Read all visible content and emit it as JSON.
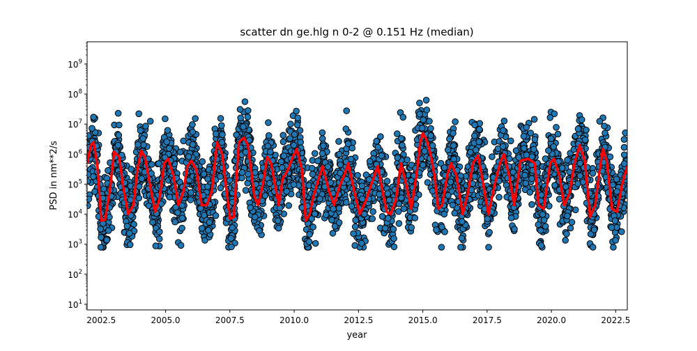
{
  "chart_data": {
    "type": "scatter",
    "title": "scatter dn ge.hlg n 0-2 @ 0.151 Hz (median)",
    "xlabel": "year",
    "ylabel": "PSD in nm**2/s",
    "xlim": [
      2001.95,
      2022.95
    ],
    "ylim": [
      6.5,
      5500000000
    ],
    "yscale": "log",
    "grid": false,
    "x_ticks": [
      {
        "value": 2002.5,
        "label": "2002.5"
      },
      {
        "value": 2005.0,
        "label": "2005.0"
      },
      {
        "value": 2007.5,
        "label": "2007.5"
      },
      {
        "value": 2010.0,
        "label": "2010.0"
      },
      {
        "value": 2012.5,
        "label": "2012.5"
      },
      {
        "value": 2015.0,
        "label": "2015.0"
      },
      {
        "value": 2017.5,
        "label": "2017.5"
      },
      {
        "value": 2020.0,
        "label": "2020.0"
      },
      {
        "value": 2022.5,
        "label": "2022.5"
      }
    ],
    "y_ticks": [
      {
        "value": 10,
        "base": "10",
        "exp": "1"
      },
      {
        "value": 100,
        "base": "10",
        "exp": "2"
      },
      {
        "value": 1000,
        "base": "10",
        "exp": "3"
      },
      {
        "value": 10000,
        "base": "10",
        "exp": "4"
      },
      {
        "value": 100000,
        "base": "10",
        "exp": "5"
      },
      {
        "value": 1000000,
        "base": "10",
        "exp": "6"
      },
      {
        "value": 10000000,
        "base": "10",
        "exp": "7"
      },
      {
        "value": 100000000,
        "base": "10",
        "exp": "8"
      },
      {
        "value": 1000000000,
        "base": "10",
        "exp": "9"
      }
    ],
    "series": [
      {
        "style": "scatter",
        "color": "#1f77b4",
        "edge_color": "#000000",
        "seed": 7,
        "points_per_year": 170
      },
      {
        "style": "line",
        "color": "#ff0000",
        "points": [
          [
            2001.95,
            500000
          ],
          [
            2002.1,
            2000000
          ],
          [
            2002.2,
            2500000
          ],
          [
            2002.35,
            400000
          ],
          [
            2002.5,
            6000
          ],
          [
            2002.65,
            6500
          ],
          [
            2002.85,
            80000
          ],
          [
            2003.0,
            1200000
          ],
          [
            2003.2,
            800000
          ],
          [
            2003.35,
            80000
          ],
          [
            2003.55,
            10000
          ],
          [
            2003.75,
            20000
          ],
          [
            2003.9,
            300000
          ],
          [
            2004.05,
            1300000
          ],
          [
            2004.2,
            800000
          ],
          [
            2004.45,
            50000
          ],
          [
            2004.6,
            12000
          ],
          [
            2004.75,
            30000
          ],
          [
            2004.95,
            500000
          ],
          [
            2005.1,
            700000
          ],
          [
            2005.3,
            200000
          ],
          [
            2005.5,
            20000
          ],
          [
            2005.7,
            60000
          ],
          [
            2005.85,
            400000
          ],
          [
            2006.0,
            600000
          ],
          [
            2006.2,
            300000
          ],
          [
            2006.4,
            20000
          ],
          [
            2006.6,
            20000
          ],
          [
            2006.8,
            60000
          ],
          [
            2007.0,
            2500000
          ],
          [
            2007.2,
            1000000
          ],
          [
            2007.5,
            7000
          ],
          [
            2007.65,
            8000
          ],
          [
            2007.85,
            2500000
          ],
          [
            2008.05,
            3500000
          ],
          [
            2008.2,
            2000000
          ],
          [
            2008.45,
            40000
          ],
          [
            2008.6,
            20000
          ],
          [
            2008.8,
            120000
          ],
          [
            2008.95,
            800000
          ],
          [
            2009.1,
            500000
          ],
          [
            2009.4,
            20000
          ],
          [
            2009.55,
            150000
          ],
          [
            2009.75,
            300000
          ],
          [
            2009.95,
            800000
          ],
          [
            2010.1,
            1500000
          ],
          [
            2010.3,
            300000
          ],
          [
            2010.45,
            6000
          ],
          [
            2010.6,
            10000
          ],
          [
            2010.75,
            40000
          ],
          [
            2010.95,
            150000
          ],
          [
            2011.1,
            400000
          ],
          [
            2011.35,
            60000
          ],
          [
            2011.55,
            20000
          ],
          [
            2011.75,
            80000
          ],
          [
            2011.95,
            200000
          ],
          [
            2012.1,
            500000
          ],
          [
            2012.35,
            50000
          ],
          [
            2012.55,
            10000
          ],
          [
            2012.8,
            30000
          ],
          [
            2013.0,
            100000
          ],
          [
            2013.25,
            400000
          ],
          [
            2013.45,
            50000
          ],
          [
            2013.6,
            12000
          ],
          [
            2013.75,
            10000
          ],
          [
            2013.95,
            30000
          ],
          [
            2014.15,
            500000
          ],
          [
            2014.35,
            100000
          ],
          [
            2014.55,
            15000
          ],
          [
            2014.75,
            200000
          ],
          [
            2014.9,
            2500000
          ],
          [
            2015.0,
            5000000
          ],
          [
            2015.15,
            3000000
          ],
          [
            2015.3,
            1000000
          ],
          [
            2015.45,
            200000
          ],
          [
            2015.6,
            15000
          ],
          [
            2015.75,
            20000
          ],
          [
            2015.95,
            200000
          ],
          [
            2016.1,
            500000
          ],
          [
            2016.3,
            200000
          ],
          [
            2016.55,
            10000
          ],
          [
            2016.75,
            50000
          ],
          [
            2016.95,
            500000
          ],
          [
            2017.15,
            900000
          ],
          [
            2017.35,
            100000
          ],
          [
            2017.55,
            10000
          ],
          [
            2017.8,
            100000
          ],
          [
            2018.0,
            500000
          ],
          [
            2018.15,
            1000000
          ],
          [
            2018.35,
            200000
          ],
          [
            2018.55,
            20000
          ],
          [
            2018.8,
            600000
          ],
          [
            2019.1,
            700000
          ],
          [
            2019.35,
            500000
          ],
          [
            2019.5,
            20000
          ],
          [
            2019.7,
            15000
          ],
          [
            2019.95,
            500000
          ],
          [
            2020.1,
            700000
          ],
          [
            2020.3,
            200000
          ],
          [
            2020.5,
            20000
          ],
          [
            2020.7,
            50000
          ],
          [
            2020.9,
            500000
          ],
          [
            2021.1,
            2000000
          ],
          [
            2021.3,
            600000
          ],
          [
            2021.5,
            8000
          ],
          [
            2021.7,
            20000
          ],
          [
            2021.85,
            200000
          ],
          [
            2022.0,
            1500000
          ],
          [
            2022.15,
            600000
          ],
          [
            2022.35,
            15000
          ],
          [
            2022.55,
            12000
          ],
          [
            2022.75,
            100000
          ],
          [
            2022.95,
            400000
          ]
        ]
      }
    ]
  }
}
